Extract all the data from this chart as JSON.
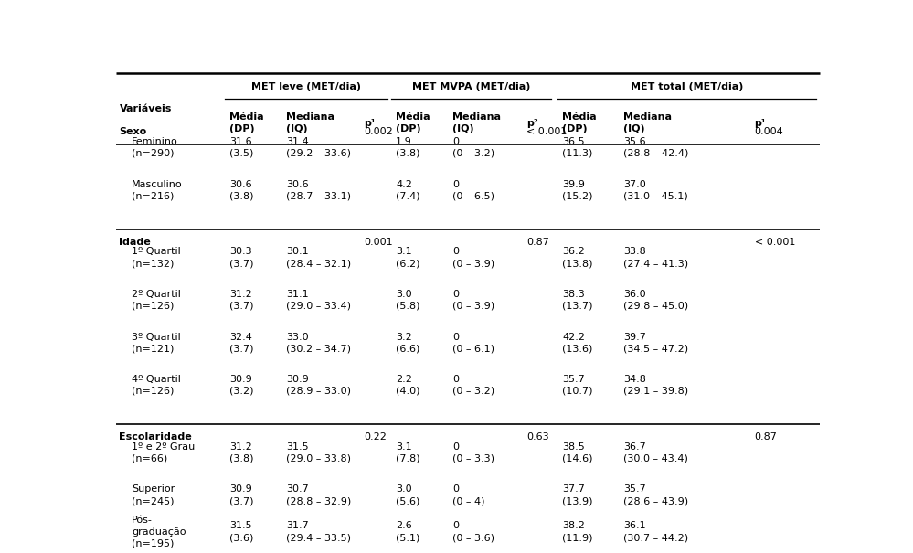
{
  "col_x": {
    "var": 0.003,
    "l_media": 0.158,
    "l_med": 0.238,
    "l_p": 0.348,
    "m_media": 0.393,
    "m_med": 0.473,
    "m_p": 0.578,
    "t_media": 0.628,
    "t_med": 0.715,
    "t_p": 0.9
  },
  "rows": [
    {
      "type": "section",
      "label": "Sexo",
      "p_leve": "0.002",
      "p_mvpa": "< 0.001",
      "p_total": "0.004"
    },
    {
      "type": "data2",
      "label": "Feminino\n(n=290)",
      "leve_media": "31.6\n(3.5)",
      "leve_med": "31.4\n(29.2 – 33.6)",
      "mvpa_media": "1.9\n(3.8)",
      "mvpa_med": "0\n(0 – 3.2)",
      "tot_media": "36.5\n(11.3)",
      "tot_med": "35.6\n(28.8 – 42.4)"
    },
    {
      "type": "data2",
      "label": "Masculino\n(n=216)",
      "leve_media": "30.6\n(3.8)",
      "leve_med": "30.6\n(28.7 – 33.1)",
      "mvpa_media": "4.2\n(7.4)",
      "mvpa_med": "0\n(0 – 6.5)",
      "tot_media": "39.9\n(15.2)",
      "tot_med": "37.0\n(31.0 – 45.1)"
    },
    {
      "type": "section",
      "label": "Idade",
      "p_leve": "0.001",
      "p_mvpa": "0.87",
      "p_total": "< 0.001"
    },
    {
      "type": "data2",
      "label": "1º Quartil\n(n=132)",
      "leve_media": "30.3\n(3.7)",
      "leve_med": "30.1\n(28.4 – 32.1)",
      "mvpa_media": "3.1\n(6.2)",
      "mvpa_med": "0\n(0 – 3.9)",
      "tot_media": "36.2\n(13.8)",
      "tot_med": "33.8\n(27.4 – 41.3)"
    },
    {
      "type": "data2",
      "label": "2º Quartil\n(n=126)",
      "leve_media": "31.2\n(3.7)",
      "leve_med": "31.1\n(29.0 – 33.4)",
      "mvpa_media": "3.0\n(5.8)",
      "mvpa_med": "0\n(0 – 3.9)",
      "tot_media": "38.3\n(13.7)",
      "tot_med": "36.0\n(29.8 – 45.0)"
    },
    {
      "type": "data2",
      "label": "3º Quartil\n(n=121)",
      "leve_media": "32.4\n(3.7)",
      "leve_med": "33.0\n(30.2 – 34.7)",
      "mvpa_media": "3.2\n(6.6)",
      "mvpa_med": "0\n(0 – 6.1)",
      "tot_media": "42.2\n(13.6)",
      "tot_med": "39.7\n(34.5 – 47.2)"
    },
    {
      "type": "data2",
      "label": "4º Quartil\n(n=126)",
      "leve_media": "30.9\n(3.2)",
      "leve_med": "30.9\n(28.9 – 33.0)",
      "mvpa_media": "2.2\n(4.0)",
      "mvpa_med": "0\n(0 – 3.2)",
      "tot_media": "35.7\n(10.7)",
      "tot_med": "34.8\n(29.1 – 39.8)"
    },
    {
      "type": "section",
      "label": "Escolaridade",
      "p_leve": "0.22",
      "p_mvpa": "0.63",
      "p_total": "0.87"
    },
    {
      "type": "data2",
      "label": "1º e 2º Grau\n(n=66)",
      "leve_media": "31.2\n(3.8)",
      "leve_med": "31.5\n(29.0 – 33.8)",
      "mvpa_media": "3.1\n(7.8)",
      "mvpa_med": "0\n(0 – 3.3)",
      "tot_media": "38.5\n(14.6)",
      "tot_med": "36.7\n(30.0 – 43.4)"
    },
    {
      "type": "data2",
      "label": "Superior\n(n=245)",
      "leve_media": "30.9\n(3.7)",
      "leve_med": "30.7\n(28.8 – 32.9)",
      "mvpa_media": "3.0\n(5.6)",
      "mvpa_med": "0\n(0 – 4)",
      "tot_media": "37.7\n(13.9)",
      "tot_med": "35.7\n(28.6 – 43.9)"
    },
    {
      "type": "data3",
      "label": "Pós-\ngraduação\n(n=195)",
      "leve_media": "31.5\n(3.6)",
      "leve_med": "31.7\n(29.4 – 33.5)",
      "mvpa_media": "2.6\n(5.1)",
      "mvpa_med": "0\n(0 – 3.6)",
      "tot_media": "38.2\n(11.9)",
      "tot_med": "36.1\n(30.7 – 44.2)"
    }
  ],
  "font_size": 8.0,
  "header_font_size": 8.0,
  "bg_color": "#ffffff"
}
